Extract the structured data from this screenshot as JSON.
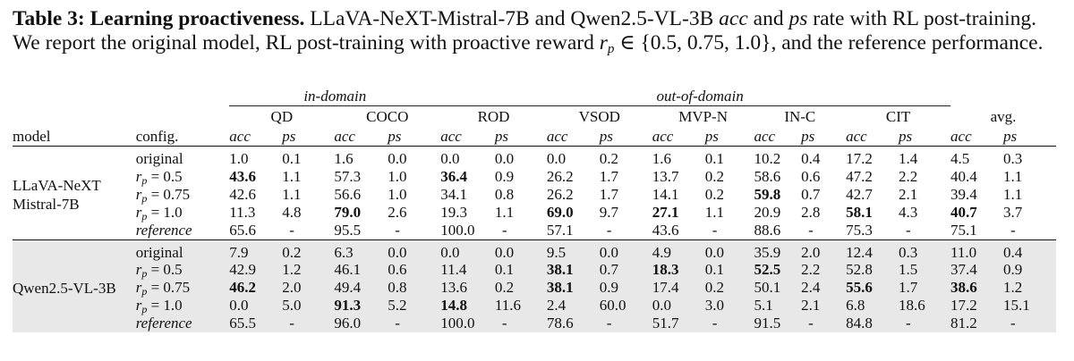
{
  "caption": {
    "label": "Table 3:",
    "title": "Learning proactiveness.",
    "text_1": "LLaVA-NeXT-Mistral-7B and Qwen2.5-VL-3B",
    "acc": "acc",
    "and": "and",
    "ps": "ps",
    "text_2": "rate with RL post-training. We report the original model, RL post-training with proactive reward",
    "r": "r",
    "p": "p",
    "set": "∈ {0.5, 0.75, 1.0}",
    "text_3": ", and the reference performance."
  },
  "table": {
    "group_in_domain": "in-domain",
    "group_out_of_domain": "out-of-domain",
    "col_model": "model",
    "col_config": "config.",
    "datasets": [
      "QD",
      "COCO",
      "ROD",
      "VSOD",
      "MVP-N",
      "IN-C",
      "CIT",
      "avg."
    ],
    "metric_acc": "acc",
    "metric_ps": "ps",
    "model_1": {
      "line1": "LLaVA-NeXT",
      "line2": "Mistral-7B"
    },
    "model_2": {
      "name": "Qwen2.5-VL-3B"
    },
    "configs": {
      "original": "original",
      "rp": "r",
      "rp_sub": "p",
      "rp05": "= 0.5",
      "rp075": "= 0.75",
      "rp10": "= 1.0",
      "reference": "reference"
    },
    "m1_rows": [
      [
        "1.0",
        "0.1",
        "1.6",
        "0.0",
        "0.0",
        "0.0",
        "0.0",
        "0.2",
        "1.6",
        "0.1",
        "10.2",
        "0.4",
        "17.2",
        "1.4",
        "4.5",
        "0.3"
      ],
      [
        "43.6",
        "1.1",
        "57.3",
        "1.0",
        "36.4",
        "0.9",
        "26.2",
        "1.7",
        "13.7",
        "0.2",
        "58.6",
        "0.6",
        "47.2",
        "2.2",
        "40.4",
        "1.1"
      ],
      [
        "42.6",
        "1.1",
        "56.6",
        "1.0",
        "34.1",
        "0.8",
        "26.2",
        "1.7",
        "14.1",
        "0.2",
        "59.8",
        "0.7",
        "42.7",
        "2.1",
        "39.4",
        "1.1"
      ],
      [
        "11.3",
        "4.8",
        "79.0",
        "2.6",
        "19.3",
        "1.1",
        "69.0",
        "9.7",
        "27.1",
        "1.1",
        "20.9",
        "2.8",
        "58.1",
        "4.3",
        "40.7",
        "3.7"
      ],
      [
        "65.6",
        "-",
        "95.5",
        "-",
        "100.0",
        "-",
        "57.1",
        "-",
        "43.6",
        "-",
        "88.6",
        "-",
        "75.3",
        "-",
        "75.1",
        "-"
      ]
    ],
    "m2_rows": [
      [
        "7.9",
        "0.2",
        "6.3",
        "0.0",
        "0.0",
        "0.0",
        "9.5",
        "0.0",
        "4.9",
        "0.0",
        "35.9",
        "2.0",
        "12.4",
        "0.3",
        "11.0",
        "0.4"
      ],
      [
        "42.9",
        "1.2",
        "46.1",
        "0.6",
        "11.4",
        "0.1",
        "38.1",
        "0.7",
        "18.3",
        "0.1",
        "52.5",
        "2.2",
        "52.8",
        "1.5",
        "37.4",
        "0.9"
      ],
      [
        "46.2",
        "2.0",
        "49.4",
        "0.8",
        "13.6",
        "0.2",
        "38.1",
        "0.9",
        "17.4",
        "0.2",
        "50.1",
        "2.4",
        "55.6",
        "1.7",
        "38.6",
        "1.2"
      ],
      [
        "0.0",
        "5.0",
        "91.3",
        "5.2",
        "14.8",
        "11.6",
        "2.4",
        "60.0",
        "0.0",
        "3.0",
        "5.1",
        "2.1",
        "6.8",
        "18.6",
        "17.2",
        "15.1"
      ],
      [
        "65.5",
        "-",
        "96.0",
        "-",
        "100.0",
        "-",
        "78.6",
        "-",
        "51.7",
        "-",
        "91.5",
        "-",
        "84.8",
        "-",
        "81.2",
        "-"
      ]
    ]
  }
}
